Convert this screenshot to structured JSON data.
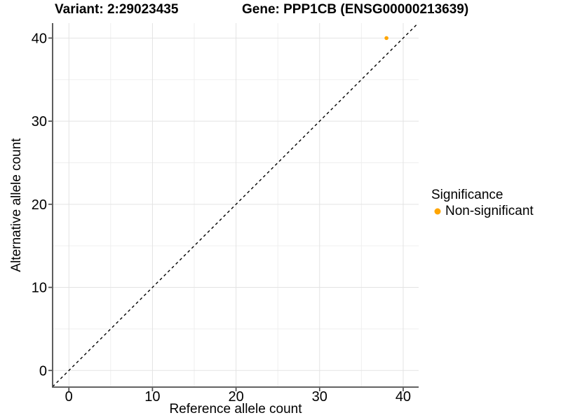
{
  "chart_data": {
    "type": "scatter",
    "title_left": "Variant: 2:29023435",
    "title_right": "Gene: PPP1CB (ENSG00000213639)",
    "xlabel": "Reference allele count",
    "ylabel": "Alternative allele count",
    "xlim": [
      -1.95,
      41.85
    ],
    "ylim": [
      -2.0,
      41.8
    ],
    "xticks": [
      0,
      10,
      20,
      30,
      40
    ],
    "yticks": [
      0,
      10,
      20,
      30,
      40
    ],
    "xticks_minor": [
      5,
      15,
      25,
      35
    ],
    "yticks_minor": [
      5,
      15,
      25,
      35
    ],
    "grid": "on",
    "reference_line": {
      "type": "identity",
      "style": "dashed",
      "color": "#000000"
    },
    "series": [
      {
        "name": "Non-significant",
        "color": "#FFA500",
        "points": [
          [
            38,
            40
          ]
        ]
      }
    ],
    "legend": {
      "title": "Significance",
      "position": "right",
      "entries": [
        {
          "label": "Non-significant",
          "color": "#FFA500"
        }
      ]
    },
    "colors": {
      "background": "#FFFFFF",
      "axis_line": "#4D4D4D",
      "grid_major": "#E3E3E3",
      "grid_minor": "#EFEFEF",
      "tick_text": "#000000",
      "dashed_line": "#000000"
    }
  }
}
